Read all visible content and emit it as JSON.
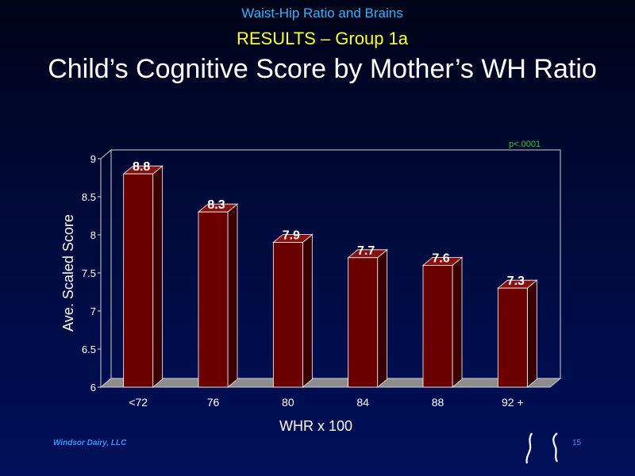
{
  "slide": {
    "supertitle": "Waist-Hip Ratio and Brains",
    "subtitle": "RESULTS – Group 1a",
    "title": "Child’s Cognitive Score by  Mother’s WH Ratio",
    "footer": "Windsor Dairy, LLC",
    "page_number": "15"
  },
  "colors": {
    "supertitle": "#33b5ff",
    "subtitle": "#ffff33",
    "title": "#ffffff",
    "bar_front": "#6b0000",
    "annotation": "#33cc33",
    "footer": "#3399ff"
  },
  "chart_data": {
    "type": "bar",
    "categories": [
      "<72",
      "76",
      "80",
      "84",
      "88",
      "92 +"
    ],
    "values": [
      8.8,
      8.3,
      7.9,
      7.7,
      7.6,
      7.3
    ],
    "data_labels": [
      "8.8",
      "8.3",
      "7.9",
      "7.7",
      "7.6",
      "7.3"
    ],
    "xlabel": "WHR x 100",
    "ylabel": "Ave. Scaled Score",
    "ylim": [
      6,
      9
    ],
    "yticks": [
      "6",
      "6.5",
      "7",
      "7.5",
      "8",
      "8.5",
      "9"
    ],
    "annotation": "p<.0001",
    "style": "3d-column"
  }
}
